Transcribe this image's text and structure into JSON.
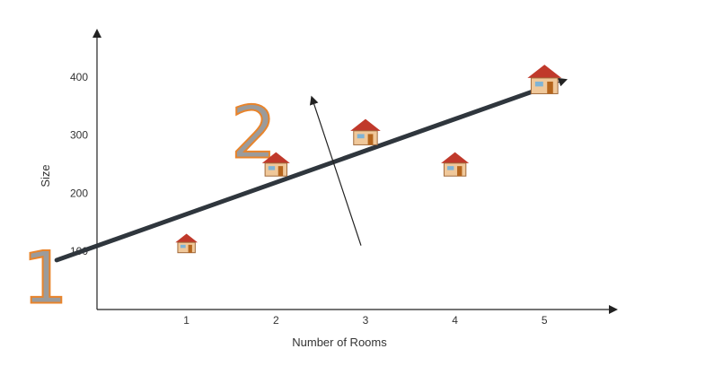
{
  "chart_data": {
    "type": "scatter",
    "title": "",
    "xlabel": "Number of Rooms",
    "ylabel": "Size",
    "x_ticks": [
      "1",
      "2",
      "3",
      "4",
      "5"
    ],
    "y_ticks": [
      "100",
      "200",
      "300",
      "400"
    ],
    "xlim": [
      0,
      5.8
    ],
    "ylim": [
      0,
      480
    ],
    "series": [
      {
        "marker": "house-icon",
        "points": [
          {
            "x": 1,
            "y": 110
          },
          {
            "x": 2,
            "y": 245
          },
          {
            "x": 3,
            "y": 300
          },
          {
            "x": 4,
            "y": 245
          },
          {
            "x": 5,
            "y": 390
          }
        ]
      }
    ],
    "regression_line": {
      "x_start": -0.45,
      "y_start": 85,
      "x_end": 5.05,
      "y_end": 385,
      "color": "#2f363d"
    },
    "direction_arrow": {
      "x_start": 2.95,
      "y_start": 110,
      "x_end": 2.4,
      "y_end": 365
    },
    "annotations": [
      {
        "text": "1",
        "x": -0.58,
        "y": 55
      },
      {
        "text": "2",
        "x": 1.75,
        "y": 305
      }
    ],
    "grid": false,
    "legend": "none"
  }
}
